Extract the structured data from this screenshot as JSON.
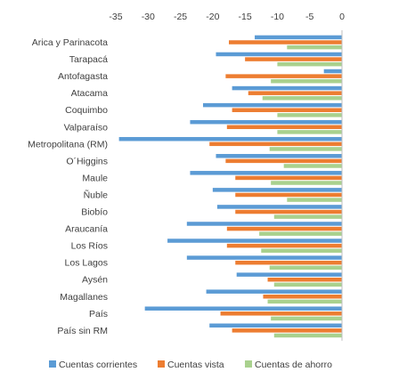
{
  "chart_data": {
    "type": "bar",
    "orientation": "horizontal",
    "categories": [
      "Arica y Parinacota",
      "Tarapacá",
      "Antofagasta",
      "Atacama",
      "Coquimbo",
      "Valparaíso",
      "Metropolitana (RM)",
      "O´Higgins",
      "Maule",
      "Ñuble",
      "Biobío",
      "Araucanía",
      "Los Ríos",
      "Los Lagos",
      "Aysén",
      "Magallanes",
      "País",
      "País sin RM"
    ],
    "series": [
      {
        "name": "Cuentas corrientes",
        "color": "#5B9BD5",
        "values": [
          -13.5,
          -19.5,
          -2.8,
          -17,
          -21.5,
          -23.5,
          -34.5,
          -19.5,
          -23.5,
          -20,
          -19.3,
          -24,
          -27,
          -24,
          -16.3,
          -21,
          -30.5,
          -20.5
        ]
      },
      {
        "name": "Cuentas vista",
        "color": "#ED7D31",
        "values": [
          -17.5,
          -15,
          -18,
          -14.5,
          -17,
          -17.8,
          -20.5,
          -18,
          -16.5,
          -16.5,
          -16.5,
          -17.8,
          -17.8,
          -16.5,
          -11.5,
          -12.2,
          -18.8,
          -17
        ]
      },
      {
        "name": "Cuentas de ahorro",
        "color": "#A9D18E",
        "values": [
          -8.5,
          -10,
          -11,
          -12.3,
          -10,
          -10,
          -11.2,
          -9,
          -11,
          -8.5,
          -10.5,
          -12.8,
          -12.5,
          -11.2,
          -10.5,
          -11.5,
          -11,
          -10.5
        ]
      }
    ],
    "xlim": [
      -35,
      0
    ],
    "xticks": [
      -35,
      -30,
      -25,
      -20,
      -15,
      -10,
      -5,
      0
    ],
    "xtick_labels": [
      "-35",
      "-30",
      "-25",
      "-20",
      "-15",
      "-10",
      "-5",
      "0"
    ],
    "grid": false,
    "legend_position": "bottom"
  }
}
